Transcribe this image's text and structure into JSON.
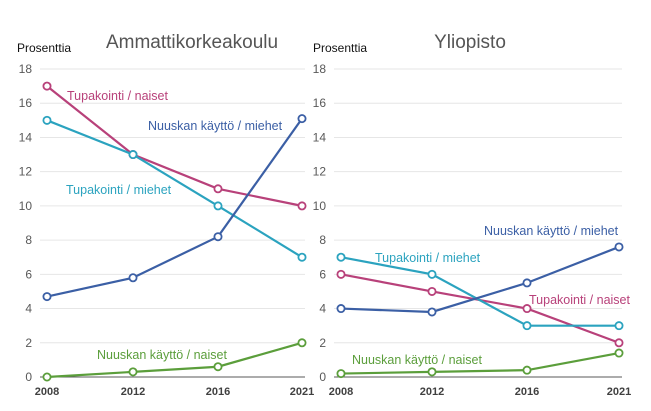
{
  "chart_data": [
    {
      "type": "line",
      "title": "Ammattikorkeakoulu",
      "ylabel": "Prosenttia",
      "xlabel": "",
      "categories": [
        "2008",
        "2012",
        "2016",
        "2021"
      ],
      "ylim": [
        0,
        18
      ],
      "yticks": [
        "0",
        "2",
        "4",
        "6",
        "8",
        "10",
        "12",
        "14",
        "16",
        "18"
      ],
      "grid": true,
      "series": [
        {
          "name": "Tupakointi / naiset",
          "color": "#b8417a",
          "values": [
            17,
            13,
            11,
            10
          ]
        },
        {
          "name": "Tupakointi / miehet",
          "color": "#2ba3bf",
          "values": [
            15,
            13,
            10,
            7
          ]
        },
        {
          "name": "Nuuskan käyttö / miehet",
          "color": "#3b5fa5",
          "values": [
            4.7,
            5.8,
            8.2,
            15.1
          ]
        },
        {
          "name": "Nuuskan käyttö / naiset",
          "color": "#5b9e3b",
          "values": [
            0,
            0.3,
            0.6,
            2
          ]
        }
      ]
    },
    {
      "type": "line",
      "title": "Yliopisto",
      "ylabel": "Prosenttia",
      "xlabel": "",
      "categories": [
        "2008",
        "2012",
        "2016",
        "2021"
      ],
      "ylim": [
        0,
        18
      ],
      "yticks": [
        "0",
        "2",
        "4",
        "6",
        "8",
        "10",
        "12",
        "14",
        "16",
        "18"
      ],
      "grid": true,
      "series": [
        {
          "name": "Tupakointi / naiset",
          "color": "#b8417a",
          "values": [
            6,
            5,
            4,
            2
          ]
        },
        {
          "name": "Tupakointi / miehet",
          "color": "#2ba3bf",
          "values": [
            7,
            6,
            3,
            3
          ]
        },
        {
          "name": "Nuuskan käyttö / miehet",
          "color": "#3b5fa5",
          "values": [
            4,
            3.8,
            5.5,
            7.6
          ]
        },
        {
          "name": "Nuuskan käyttö / naiset",
          "color": "#5b9e3b",
          "values": [
            0.2,
            0.3,
            0.4,
            1.4
          ]
        }
      ]
    }
  ]
}
